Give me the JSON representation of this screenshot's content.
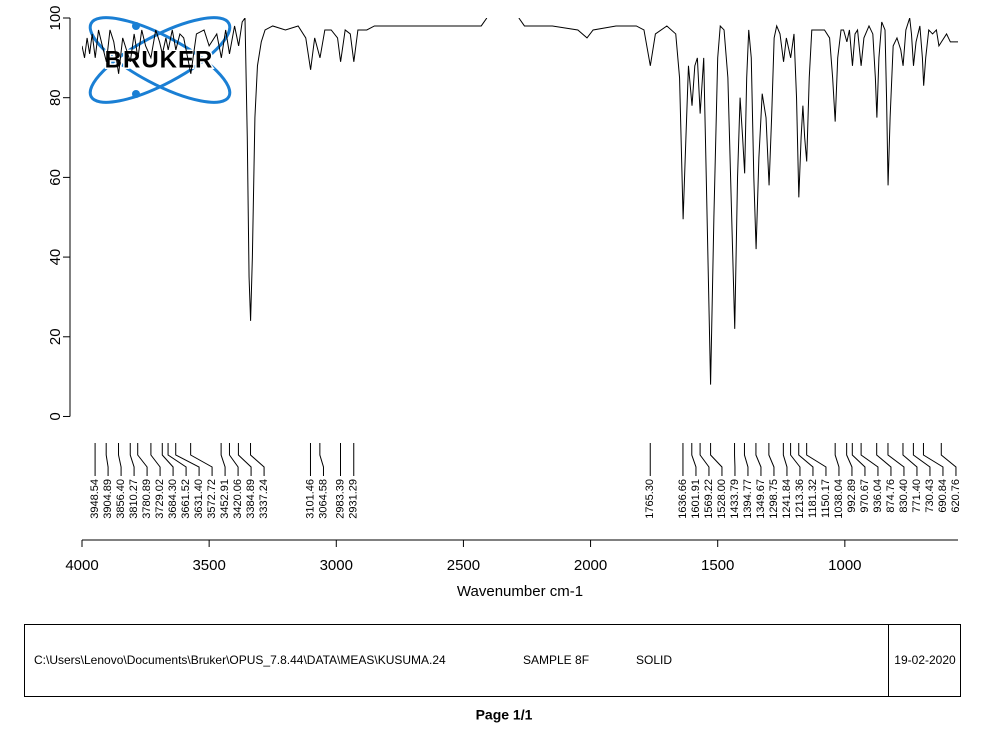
{
  "chart_data": {
    "type": "line",
    "x_label": "Wavenumber cm-1",
    "xlim": [
      4000,
      555
    ],
    "ylim": [
      -31,
      100
    ],
    "xticks": [
      4000,
      3500,
      3000,
      2500,
      2000,
      1500,
      1000
    ],
    "yticks": [
      0,
      20,
      40,
      60,
      80,
      100
    ],
    "color": "#000000",
    "x": [
      4000,
      3990,
      3980,
      3970,
      3960,
      3948,
      3935,
      3920,
      3904,
      3890,
      3875,
      3856,
      3840,
      3825,
      3810,
      3795,
      3780,
      3765,
      3750,
      3729,
      3710,
      3695,
      3684,
      3670,
      3661,
      3645,
      3631,
      3615,
      3600,
      3572,
      3550,
      3520,
      3500,
      3470,
      3452,
      3435,
      3420,
      3400,
      3384,
      3370,
      3359,
      3350,
      3343,
      3337,
      3330,
      3320,
      3310,
      3295,
      3280,
      3250,
      3200,
      3150,
      3120,
      3101,
      3085,
      3064,
      3045,
      3020,
      2995,
      2983,
      2965,
      2945,
      2931,
      2915,
      2880,
      2850,
      2800,
      2700,
      2600,
      2500,
      2430,
      2408,
      2345,
      2282,
      2260,
      2150,
      2050,
      2014,
      1990,
      1900,
      1820,
      1790,
      1765,
      1745,
      1700,
      1665,
      1650,
      1636,
      1625,
      1615,
      1601,
      1590,
      1580,
      1569,
      1555,
      1545,
      1528,
      1515,
      1500,
      1490,
      1475,
      1460,
      1445,
      1433,
      1422,
      1412,
      1402,
      1394,
      1386,
      1378,
      1368,
      1358,
      1349,
      1338,
      1325,
      1310,
      1298,
      1288,
      1278,
      1268,
      1255,
      1241,
      1230,
      1213,
      1200,
      1190,
      1181,
      1172,
      1165,
      1158,
      1150,
      1140,
      1130,
      1100,
      1080,
      1060,
      1048,
      1038,
      1028,
      1015,
      1005,
      992,
      982,
      970,
      960,
      950,
      936,
      925,
      905,
      890,
      880,
      874,
      866,
      855,
      842,
      836,
      830,
      822,
      810,
      795,
      780,
      771,
      760,
      745,
      738,
      730,
      720,
      705,
      695,
      690,
      682,
      670,
      655,
      640,
      630,
      620,
      600,
      585,
      570,
      555
    ],
    "y": [
      93,
      90,
      95,
      91,
      96,
      90,
      97,
      93,
      89,
      97,
      94,
      86,
      95,
      92,
      89,
      96,
      90,
      97,
      93,
      90,
      97,
      94,
      91,
      95,
      92,
      97,
      92,
      96,
      95,
      86,
      96,
      97,
      93,
      96,
      90,
      97,
      91,
      98,
      93,
      99,
      100,
      70,
      35,
      24,
      40,
      75,
      88,
      94,
      97,
      98,
      97,
      98,
      95,
      87,
      95,
      90,
      97,
      97,
      95,
      89,
      97,
      96,
      89,
      97,
      97,
      98,
      98,
      98,
      98,
      98,
      98,
      100,
      null,
      100,
      98,
      98,
      97,
      95,
      97,
      98,
      98,
      97,
      88,
      96,
      98,
      96,
      85,
      49.5,
      70,
      88,
      78,
      88,
      90,
      76,
      90,
      60,
      8,
      50,
      90,
      98,
      97,
      85,
      50,
      22,
      60,
      80,
      70,
      61,
      85,
      97,
      90,
      60,
      42,
      65,
      81,
      75,
      58,
      75,
      95,
      98,
      96,
      89,
      95,
      90,
      96,
      80,
      55,
      70,
      78,
      70,
      64,
      85,
      97,
      97,
      97,
      95,
      85,
      74,
      90,
      97,
      97,
      94,
      97,
      88,
      96,
      97,
      88,
      95,
      98,
      96,
      85,
      75,
      90,
      99,
      97,
      80,
      58,
      75,
      93,
      95,
      92,
      88,
      97,
      100,
      96,
      88,
      94,
      98,
      90,
      83,
      90,
      97,
      96,
      97,
      93,
      94,
      96,
      94,
      94,
      94
    ],
    "peaks": {
      "values": [
        3948.54,
        3904.89,
        3856.4,
        3810.27,
        3780.89,
        3729.02,
        3684.3,
        3661.52,
        3631.4,
        3572.72,
        3452.91,
        3420.06,
        3384.89,
        3337.24,
        3101.46,
        3064.58,
        2983.39,
        2931.29,
        1765.3,
        1636.66,
        1601.91,
        1569.22,
        1528,
        1433.79,
        1394.77,
        1349.67,
        1298.75,
        1241.84,
        1213.36,
        1181.32,
        1150.17,
        1038.04,
        992.89,
        970.67,
        936.04,
        874.76,
        830.4,
        771.4,
        730.43,
        690.84,
        620.76
      ],
      "value_labels": [
        "3948.54",
        "3904.89",
        "3856.40",
        "3810.27",
        "3780.89",
        "3729.02",
        "3684.30",
        "3661.52",
        "3631.40",
        "3572.72",
        "3452.91",
        "3420.06",
        "3384.89",
        "3337.24",
        "3101.46",
        "3064.58",
        "2983.39",
        "2931.29",
        "1765.30",
        "1636.66",
        "1601.91",
        "1569.22",
        "1528.00",
        "1433.79",
        "1394.77",
        "1349.67",
        "1298.75",
        "1241.84",
        "1213.36",
        "1181.32",
        "1150.17",
        "1038.04",
        "992.89",
        "970.67",
        "936.04",
        "874.76",
        "830.40",
        "771.40",
        "730.43",
        "690.84",
        "620.76"
      ]
    }
  },
  "logo": "BRUKER",
  "footer": {
    "file": "C:\\Users\\Lenovo\\Documents\\Bruker\\OPUS_7.8.44\\DATA\\MEAS\\KUSUMA.24",
    "sample": "SAMPLE 8F",
    "state": "SOLID",
    "date": "19-02-2020"
  },
  "page": "Page 1/1"
}
